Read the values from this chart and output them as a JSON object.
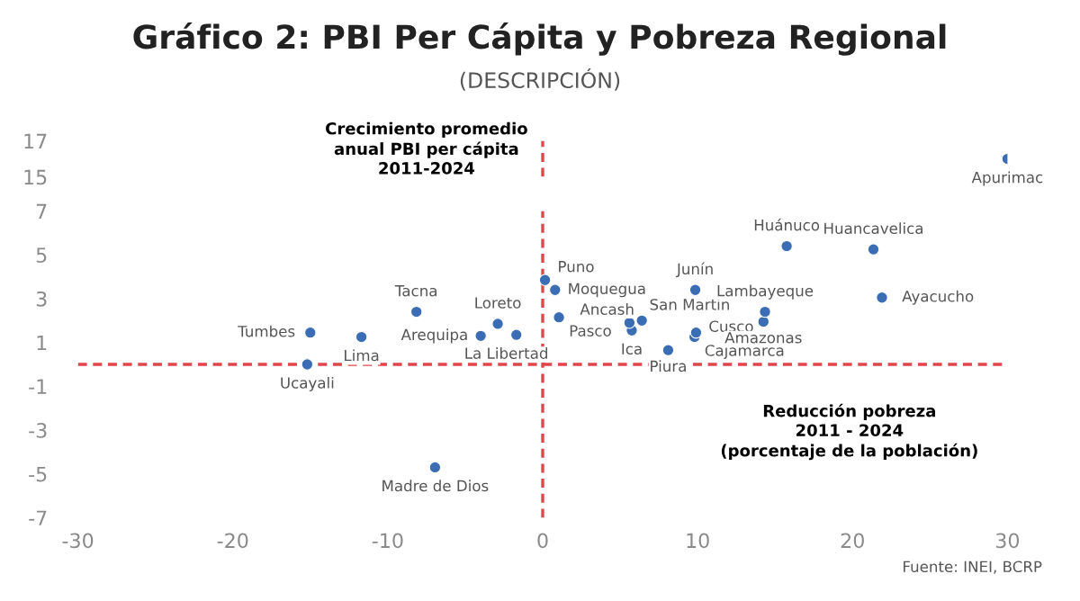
{
  "chart_data": [
    {
      "type": "scatter",
      "title": "Gráfico 2: PBI Per Cápita y Pobreza Regional",
      "subtitle": "(DESCRIPCIÓN)",
      "x": [
        30.0
      ],
      "values": [
        16.0
      ],
      "color": "#3b6db5",
      "marker": "circle",
      "xlim": [
        -30,
        30
      ],
      "ylim": [
        15,
        17
      ],
      "yticks": [
        15,
        17
      ],
      "tick_labels": "y",
      "grid": false,
      "legend": false,
      "ref_lines": [
        {
          "axis": "x",
          "value": 0,
          "color": "#e0454a",
          "line_style": "dashed"
        }
      ],
      "annotations": [
        {
          "text": "Apurimac",
          "x": 30.0,
          "y": 16.0
        }
      ]
    },
    {
      "type": "scatter",
      "xlabel": "Reducción pobreza\n2011 - 2024\n(porcentaje de la población)",
      "ylabel": "Crecimiento promedio\nanual PBI per cápita\n2011-2024",
      "x": [
        -15.0,
        -15.2,
        -11.7,
        -8.15,
        -6.95,
        -4.0,
        -2.9,
        -1.7,
        0.15,
        0.8,
        1.05,
        5.6,
        5.75,
        6.4,
        9.85,
        9.9,
        9.8,
        8.1,
        14.35,
        14.25,
        15.75,
        21.35,
        21.9
      ],
      "values": [
        1.45,
        0.0,
        1.25,
        2.4,
        -4.7,
        1.3,
        1.85,
        1.35,
        3.85,
        3.4,
        2.15,
        1.9,
        1.55,
        2.0,
        3.4,
        1.45,
        1.25,
        0.65,
        2.4,
        1.95,
        5.4,
        5.25,
        3.05
      ],
      "color": "#3b6db5",
      "marker": "circle",
      "xlim": [
        -30,
        30
      ],
      "xticks": [
        -30,
        -20,
        -10,
        0,
        10,
        20,
        30
      ],
      "ylim": [
        -7,
        7
      ],
      "yticks": [
        -7,
        -5,
        -3,
        -1,
        1,
        3,
        5,
        7
      ],
      "grid": false,
      "legend": false,
      "ref_lines": [
        {
          "axis": "x",
          "value": 0,
          "color": "#e0454a",
          "line_style": "dashed"
        },
        {
          "axis": "y",
          "value": 0,
          "color": "#e0454a",
          "line_style": "dashed"
        }
      ],
      "annotations": [
        {
          "text": "Tumbes",
          "x": -15.0,
          "y": 1.45
        },
        {
          "text": "Ucayali",
          "x": -15.2,
          "y": 0.0
        },
        {
          "text": "Lima",
          "x": -11.7,
          "y": 1.25
        },
        {
          "text": "Tacna",
          "x": -8.15,
          "y": 2.4
        },
        {
          "text": "Madre de Dios",
          "x": -6.95,
          "y": -4.7
        },
        {
          "text": "Arequipa",
          "x": -4.0,
          "y": 1.3
        },
        {
          "text": "Loreto",
          "x": -2.9,
          "y": 1.85
        },
        {
          "text": "La Libertad",
          "x": -1.7,
          "y": 1.35
        },
        {
          "text": "Puno",
          "x": 0.15,
          "y": 3.85
        },
        {
          "text": "Moquegua",
          "x": 0.8,
          "y": 3.4
        },
        {
          "text": "Pasco",
          "x": 1.05,
          "y": 2.15
        },
        {
          "text": "Ancash",
          "x": 5.6,
          "y": 1.9
        },
        {
          "text": "Ica",
          "x": 5.75,
          "y": 1.55
        },
        {
          "text": "San Martin",
          "x": 6.4,
          "y": 2.0
        },
        {
          "text": "Junín",
          "x": 9.85,
          "y": 3.4
        },
        {
          "text": "Cusco",
          "x": 9.9,
          "y": 1.45
        },
        {
          "text": "Cajamarca",
          "x": 9.8,
          "y": 1.25
        },
        {
          "text": "Piura",
          "x": 8.1,
          "y": 0.65
        },
        {
          "text": "Lambayeque",
          "x": 14.35,
          "y": 2.4
        },
        {
          "text": "Amazonas",
          "x": 14.25,
          "y": 1.95
        },
        {
          "text": "Huánuco",
          "x": 15.75,
          "y": 5.4
        },
        {
          "text": "Huancavelica",
          "x": 21.35,
          "y": 5.25
        },
        {
          "text": "Ayacucho",
          "x": 21.9,
          "y": 3.05
        },
        "Fuente: INEI, BCRP"
      ]
    }
  ]
}
